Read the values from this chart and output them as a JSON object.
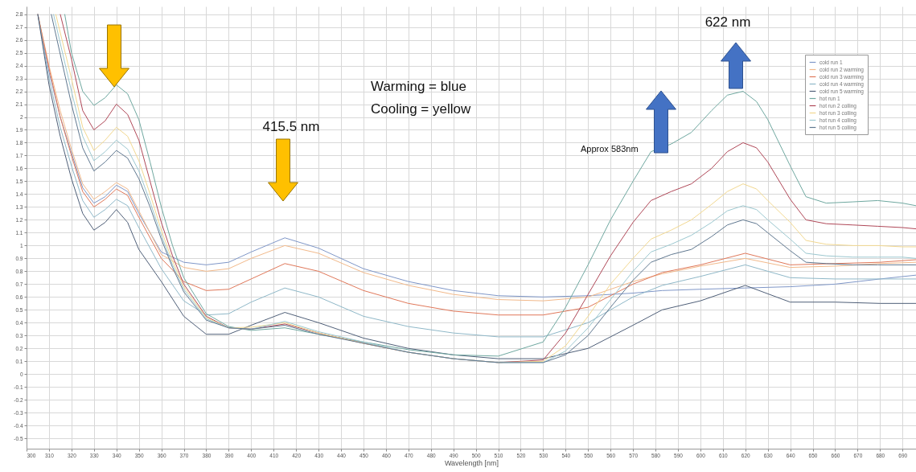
{
  "chart_data": {
    "type": "line",
    "xlabel": "Wavelength [nm]",
    "xlim": [
      300,
      696
    ],
    "ylim": [
      -0.58,
      2.86
    ],
    "xticks": [
      300,
      310,
      320,
      330,
      340,
      350,
      360,
      370,
      380,
      390,
      400,
      410,
      420,
      430,
      440,
      450,
      460,
      470,
      480,
      490,
      500,
      510,
      520,
      530,
      540,
      550,
      560,
      570,
      580,
      590,
      600,
      610,
      620,
      630,
      640,
      650,
      660,
      670,
      680,
      690
    ],
    "yticks": [
      -0.5,
      -0.4,
      -0.3,
      -0.2,
      -0.1,
      0,
      0.1,
      0.2,
      0.3,
      0.4,
      0.5,
      0.6,
      0.7,
      0.8,
      0.9,
      1,
      1.1,
      1.2,
      1.3,
      1.4,
      1.5,
      1.6,
      1.7,
      1.8,
      1.9,
      2,
      2.1,
      2.2,
      2.3,
      2.4,
      2.5,
      2.6,
      2.7,
      2.8
    ],
    "grid": true,
    "legend": "top right",
    "annotations": [
      "622 nm",
      "415.5 nm",
      "Warming = blue",
      "Cooling = yellow",
      "Approx 583nm"
    ],
    "series": [
      {
        "name": "cold run 1",
        "color": "#7f97c8",
        "x": [
          305,
          310,
          315,
          320,
          325,
          330,
          335,
          340,
          345,
          350,
          360,
          370,
          380,
          390,
          400,
          415,
          430,
          450,
          470,
          490,
          510,
          530,
          550,
          570,
          583,
          600,
          620,
          640,
          660,
          680,
          696
        ],
        "values": [
          2.8,
          2.35,
          2.0,
          1.72,
          1.45,
          1.33,
          1.38,
          1.47,
          1.42,
          1.25,
          0.95,
          0.87,
          0.85,
          0.87,
          0.95,
          1.06,
          0.98,
          0.82,
          0.72,
          0.65,
          0.61,
          0.6,
          0.61,
          0.63,
          0.65,
          0.66,
          0.67,
          0.68,
          0.7,
          0.74,
          0.77
        ]
      },
      {
        "name": "cold run 2 warming",
        "color": "#f2b98a",
        "x": [
          305,
          310,
          315,
          320,
          325,
          330,
          335,
          340,
          345,
          350,
          360,
          370,
          380,
          390,
          400,
          415,
          430,
          450,
          470,
          490,
          510,
          530,
          550,
          570,
          583,
          600,
          620,
          640,
          660,
          680,
          696
        ],
        "values": [
          2.8,
          2.4,
          2.05,
          1.75,
          1.48,
          1.36,
          1.42,
          1.49,
          1.44,
          1.27,
          0.93,
          0.83,
          0.8,
          0.82,
          0.9,
          1.0,
          0.94,
          0.79,
          0.69,
          0.62,
          0.58,
          0.57,
          0.6,
          0.72,
          0.78,
          0.84,
          0.9,
          0.83,
          0.84,
          0.86,
          0.87
        ]
      },
      {
        "name": "cold run 3 warming",
        "color": "#e0785a",
        "x": [
          305,
          310,
          315,
          320,
          325,
          330,
          335,
          340,
          345,
          350,
          360,
          370,
          380,
          390,
          400,
          415,
          430,
          450,
          470,
          490,
          510,
          530,
          550,
          570,
          583,
          600,
          620,
          640,
          660,
          680,
          696
        ],
        "values": [
          2.8,
          2.38,
          2.0,
          1.7,
          1.42,
          1.3,
          1.36,
          1.44,
          1.39,
          1.22,
          0.9,
          0.72,
          0.65,
          0.66,
          0.74,
          0.86,
          0.8,
          0.65,
          0.55,
          0.49,
          0.46,
          0.46,
          0.52,
          0.7,
          0.79,
          0.85,
          0.94,
          0.85,
          0.86,
          0.87,
          0.89
        ]
      },
      {
        "name": "cold run 4 warming",
        "color": "#8fb8c8",
        "x": [
          305,
          310,
          315,
          320,
          325,
          330,
          335,
          340,
          345,
          350,
          360,
          370,
          380,
          390,
          400,
          415,
          430,
          450,
          470,
          490,
          510,
          530,
          550,
          570,
          583,
          600,
          620,
          640,
          660,
          680,
          696
        ],
        "values": [
          2.8,
          2.3,
          1.92,
          1.62,
          1.35,
          1.22,
          1.28,
          1.36,
          1.31,
          1.14,
          0.82,
          0.57,
          0.46,
          0.47,
          0.56,
          0.67,
          0.6,
          0.45,
          0.37,
          0.32,
          0.29,
          0.29,
          0.4,
          0.6,
          0.69,
          0.76,
          0.85,
          0.75,
          0.74,
          0.74,
          0.74
        ]
      },
      {
        "name": "cold run 5 warming",
        "color": "#4f5f78",
        "x": [
          305,
          310,
          315,
          320,
          325,
          330,
          335,
          340,
          345,
          350,
          360,
          370,
          380,
          390,
          400,
          415,
          430,
          450,
          470,
          490,
          510,
          530,
          550,
          570,
          583,
          600,
          620,
          640,
          660,
          680,
          696
        ],
        "values": [
          2.8,
          2.25,
          1.85,
          1.52,
          1.25,
          1.12,
          1.18,
          1.28,
          1.18,
          0.97,
          0.72,
          0.45,
          0.31,
          0.31,
          0.38,
          0.48,
          0.4,
          0.28,
          0.2,
          0.15,
          0.12,
          0.12,
          0.2,
          0.38,
          0.5,
          0.57,
          0.69,
          0.56,
          0.56,
          0.55,
          0.55
        ]
      },
      {
        "name": "hot run 1",
        "color": "#6fa8a0",
        "x": [
          317,
          320,
          325,
          330,
          335,
          340,
          345,
          350,
          355,
          360,
          365,
          370,
          380,
          390,
          400,
          415,
          430,
          450,
          470,
          490,
          510,
          530,
          540,
          550,
          560,
          570,
          578,
          587,
          596,
          605,
          612,
          619,
          625,
          630,
          640,
          647,
          656,
          668,
          679,
          690,
          696
        ],
        "values": [
          2.8,
          2.5,
          2.2,
          2.09,
          2.15,
          2.25,
          2.18,
          1.98,
          1.65,
          1.3,
          1.0,
          0.75,
          0.47,
          0.37,
          0.34,
          0.36,
          0.31,
          0.25,
          0.19,
          0.15,
          0.14,
          0.25,
          0.52,
          0.85,
          1.2,
          1.5,
          1.73,
          1.79,
          1.88,
          2.05,
          2.17,
          2.2,
          2.12,
          1.98,
          1.62,
          1.38,
          1.33,
          1.34,
          1.35,
          1.33,
          1.31
        ]
      },
      {
        "name": "hot run 2 colling",
        "color": "#b04858",
        "x": [
          315,
          320,
          325,
          330,
          335,
          340,
          345,
          350,
          355,
          360,
          365,
          370,
          380,
          390,
          400,
          415,
          430,
          450,
          470,
          490,
          510,
          530,
          540,
          550,
          560,
          570,
          578,
          587,
          596,
          605,
          612,
          619,
          625,
          630,
          640,
          647,
          656,
          668,
          679,
          690,
          696
        ],
        "values": [
          2.8,
          2.45,
          2.05,
          1.9,
          1.97,
          2.1,
          2.02,
          1.82,
          1.5,
          1.18,
          0.92,
          0.7,
          0.45,
          0.36,
          0.35,
          0.39,
          0.32,
          0.24,
          0.17,
          0.12,
          0.09,
          0.11,
          0.32,
          0.62,
          0.92,
          1.18,
          1.35,
          1.42,
          1.48,
          1.6,
          1.73,
          1.8,
          1.76,
          1.65,
          1.36,
          1.2,
          1.17,
          1.16,
          1.15,
          1.14,
          1.13
        ]
      },
      {
        "name": "hot run 3 colling",
        "color": "#f2d890",
        "x": [
          313,
          320,
          325,
          330,
          335,
          340,
          345,
          350,
          355,
          360,
          365,
          370,
          380,
          390,
          400,
          415,
          430,
          450,
          470,
          490,
          510,
          530,
          540,
          550,
          560,
          570,
          578,
          587,
          596,
          605,
          612,
          619,
          625,
          630,
          640,
          647,
          656,
          668,
          679,
          690,
          696
        ],
        "values": [
          2.8,
          2.3,
          1.92,
          1.74,
          1.82,
          1.92,
          1.85,
          1.66,
          1.4,
          1.12,
          0.88,
          0.68,
          0.44,
          0.36,
          0.365,
          0.4,
          0.32,
          0.24,
          0.17,
          0.12,
          0.09,
          0.1,
          0.22,
          0.45,
          0.7,
          0.9,
          1.05,
          1.12,
          1.2,
          1.32,
          1.42,
          1.48,
          1.44,
          1.35,
          1.18,
          1.04,
          1.01,
          1.0,
          1.0,
          0.99,
          0.99
        ]
      },
      {
        "name": "hot run 4 colling",
        "color": "#9cc8d0",
        "x": [
          312,
          320,
          325,
          330,
          335,
          340,
          345,
          350,
          355,
          360,
          365,
          370,
          380,
          390,
          400,
          415,
          430,
          450,
          470,
          490,
          510,
          530,
          540,
          550,
          560,
          570,
          578,
          587,
          596,
          605,
          612,
          619,
          625,
          630,
          640,
          647,
          656,
          668,
          679,
          690,
          696
        ],
        "values": [
          2.8,
          2.2,
          1.85,
          1.66,
          1.73,
          1.82,
          1.75,
          1.58,
          1.34,
          1.08,
          0.85,
          0.66,
          0.43,
          0.36,
          0.35,
          0.41,
          0.33,
          0.25,
          0.17,
          0.12,
          0.09,
          0.09,
          0.18,
          0.36,
          0.58,
          0.8,
          0.95,
          1.01,
          1.08,
          1.18,
          1.27,
          1.31,
          1.28,
          1.2,
          1.05,
          0.94,
          0.92,
          0.91,
          0.91,
          0.91,
          0.9
        ]
      },
      {
        "name": "hot run 5 colling",
        "color": "#607890",
        "x": [
          311,
          320,
          325,
          330,
          335,
          340,
          345,
          350,
          355,
          360,
          365,
          370,
          380,
          390,
          400,
          415,
          430,
          450,
          470,
          490,
          510,
          530,
          540,
          550,
          560,
          570,
          578,
          587,
          596,
          605,
          612,
          619,
          625,
          630,
          640,
          647,
          656,
          668,
          679,
          690,
          696
        ],
        "values": [
          2.8,
          2.1,
          1.76,
          1.58,
          1.65,
          1.74,
          1.68,
          1.52,
          1.3,
          1.05,
          0.83,
          0.64,
          0.42,
          0.36,
          0.35,
          0.38,
          0.31,
          0.24,
          0.17,
          0.12,
          0.09,
          0.09,
          0.15,
          0.3,
          0.52,
          0.73,
          0.87,
          0.93,
          0.97,
          1.07,
          1.16,
          1.2,
          1.17,
          1.1,
          0.96,
          0.87,
          0.86,
          0.85,
          0.85,
          0.85,
          0.85
        ]
      }
    ]
  }
}
